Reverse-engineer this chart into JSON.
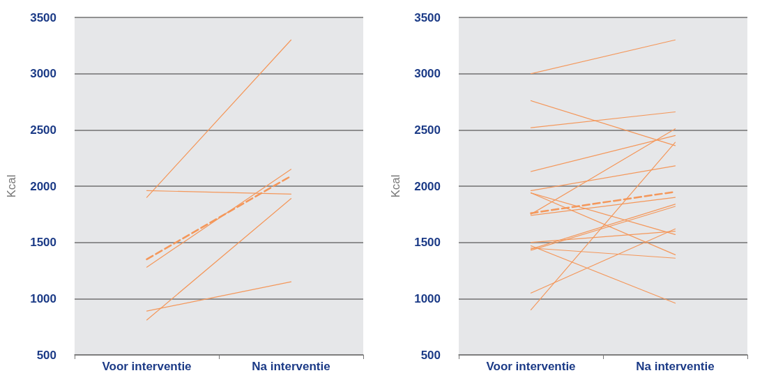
{
  "chart_data": [
    {
      "type": "line",
      "ylabel": "Kcal",
      "categories": [
        "Voor interventie",
        "Na interventie"
      ],
      "ylim": [
        500,
        3500
      ],
      "yticks": [
        500,
        1000,
        1500,
        2000,
        2500,
        3000,
        3500
      ],
      "grid": "y",
      "marker": "none",
      "line_style": "solid",
      "series": [
        {
          "color": "#f4975a",
          "values": [
            1900,
            3300
          ]
        },
        {
          "color": "#f4975a",
          "values": [
            1960,
            1930
          ]
        },
        {
          "color": "#f4975a",
          "values": [
            1280,
            2150
          ]
        },
        {
          "color": "#f4975a",
          "values": [
            810,
            1890
          ]
        },
        {
          "color": "#f4975a",
          "values": [
            890,
            1150
          ]
        },
        {
          "color": "#f4975a",
          "values": [
            1350,
            2090
          ],
          "line_style": "dashed"
        }
      ]
    },
    {
      "type": "line",
      "ylabel": "Kcal",
      "categories": [
        "Voor interventie",
        "Na interventie"
      ],
      "ylim": [
        500,
        3500
      ],
      "yticks": [
        500,
        1000,
        1500,
        2000,
        2500,
        3000,
        3500
      ],
      "grid": "y",
      "marker": "none",
      "line_style": "solid",
      "series": [
        {
          "color": "#f4975a",
          "values": [
            3000,
            3300
          ]
        },
        {
          "color": "#f4975a",
          "values": [
            2760,
            2360
          ]
        },
        {
          "color": "#f4975a",
          "values": [
            2520,
            2660
          ]
        },
        {
          "color": "#f4975a",
          "values": [
            2130,
            2450
          ]
        },
        {
          "color": "#f4975a",
          "values": [
            1750,
            2510
          ]
        },
        {
          "color": "#f4975a",
          "values": [
            900,
            2390
          ]
        },
        {
          "color": "#f4975a",
          "values": [
            1960,
            2180
          ]
        },
        {
          "color": "#f4975a",
          "values": [
            1940,
            1570
          ]
        },
        {
          "color": "#f4975a",
          "values": [
            1940,
            1390
          ]
        },
        {
          "color": "#f4975a",
          "values": [
            1740,
            1900
          ]
        },
        {
          "color": "#f4975a",
          "values": [
            1440,
            1840
          ]
        },
        {
          "color": "#f4975a",
          "values": [
            1430,
            1820
          ]
        },
        {
          "color": "#f4975a",
          "values": [
            1500,
            1600
          ]
        },
        {
          "color": "#f4975a",
          "values": [
            1470,
            960
          ]
        },
        {
          "color": "#f4975a",
          "values": [
            1450,
            1360
          ]
        },
        {
          "color": "#f4975a",
          "values": [
            1050,
            1620
          ]
        },
        {
          "color": "#f4975a",
          "values": [
            1760,
            1950
          ],
          "line_style": "dashed"
        }
      ]
    }
  ]
}
